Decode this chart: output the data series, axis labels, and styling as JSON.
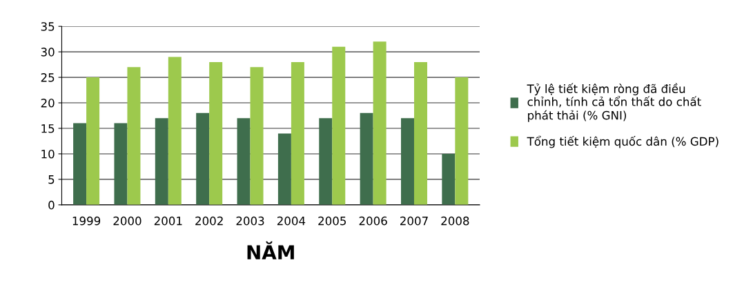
{
  "chart_data": {
    "type": "bar",
    "xlabel": "NĂM",
    "categories": [
      "1999",
      "2000",
      "2001",
      "2002",
      "2003",
      "2004",
      "2005",
      "2006",
      "2007",
      "2008"
    ],
    "series": [
      {
        "name": "Tỷ lệ tiết kiệm ròng đã điều chỉnh, tính cả tổn thất do chất phát thải (% GNI)",
        "color": "#3f6e4d",
        "values": [
          16,
          16,
          17,
          18,
          17,
          14,
          17,
          18,
          17,
          10
        ]
      },
      {
        "name": "Tổng tiết kiệm quốc dân (% GDP)",
        "color": "#9dc94d",
        "values": [
          25,
          27,
          29,
          28,
          27,
          28,
          31,
          32,
          28,
          25
        ]
      }
    ],
    "ylim": [
      0,
      35
    ],
    "yticks": [
      0,
      5,
      10,
      15,
      20,
      25,
      30,
      35
    ],
    "grid": "y",
    "legend": "right"
  }
}
